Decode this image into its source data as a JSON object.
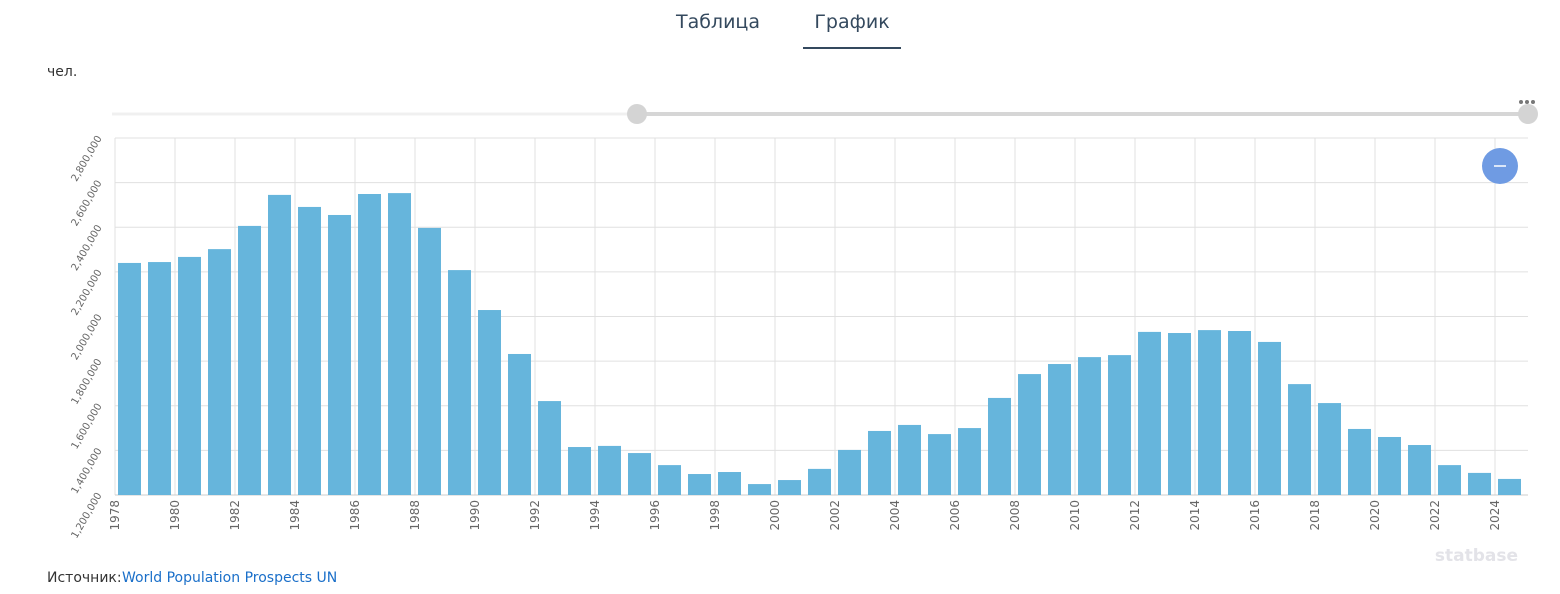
{
  "tabs": [
    "Таблица",
    "График"
  ],
  "unit": "чел.",
  "source": {
    "label": "Источник:",
    "link": "World Population Prospects UN"
  },
  "watermark": "statbase",
  "chart_data": {
    "type": "bar",
    "color": "#66b5dc",
    "grid": true,
    "categories": [
      "1978",
      null,
      "1980",
      null,
      "1982",
      null,
      "1984",
      null,
      "1986",
      null,
      "1988",
      null,
      "1990",
      null,
      "1992",
      null,
      "1994",
      null,
      "1996",
      null,
      "1998",
      null,
      "2000",
      null,
      "2002",
      null,
      "2004",
      null,
      "2006",
      null,
      "2008",
      null,
      "2010",
      null,
      "2012",
      null,
      "2014",
      null,
      "2016",
      null,
      "2018",
      null,
      "2020",
      null,
      "2022",
      null,
      "2024"
    ],
    "values": [
      2240000,
      2244000,
      2267000,
      2302000,
      2406000,
      2545000,
      2491000,
      2455000,
      2549000,
      2553000,
      2397000,
      2208000,
      2029000,
      1832000,
      1621000,
      1415000,
      1420000,
      1388000,
      1334000,
      1294000,
      1303000,
      1249000,
      1267000,
      1317000,
      1402000,
      1487000,
      1514000,
      1473000,
      1500000,
      1635000,
      1742000,
      1787000,
      1818000,
      1827000,
      1931000,
      1926000,
      1939000,
      1935000,
      1886000,
      1697000,
      1612000,
      1496000,
      1460000,
      1424000,
      1334000,
      1299000,
      1272000
    ],
    "ylim": [
      1200000,
      2800000
    ],
    "yticks": [
      {
        "value": 1200000,
        "label": "1,200,000"
      },
      {
        "value": 1400000,
        "label": "1,400,000"
      },
      {
        "value": 1600000,
        "label": "1,600,000"
      },
      {
        "value": 1800000,
        "label": "1,800,000"
      },
      {
        "value": 2000000,
        "label": "2,000,000"
      },
      {
        "value": 2200000,
        "label": "2,200,000"
      },
      {
        "value": 2400000,
        "label": "2,400,000"
      },
      {
        "value": 2600000,
        "label": "2,600,000"
      },
      {
        "value": 2800000,
        "label": "2,800,000"
      }
    ]
  }
}
